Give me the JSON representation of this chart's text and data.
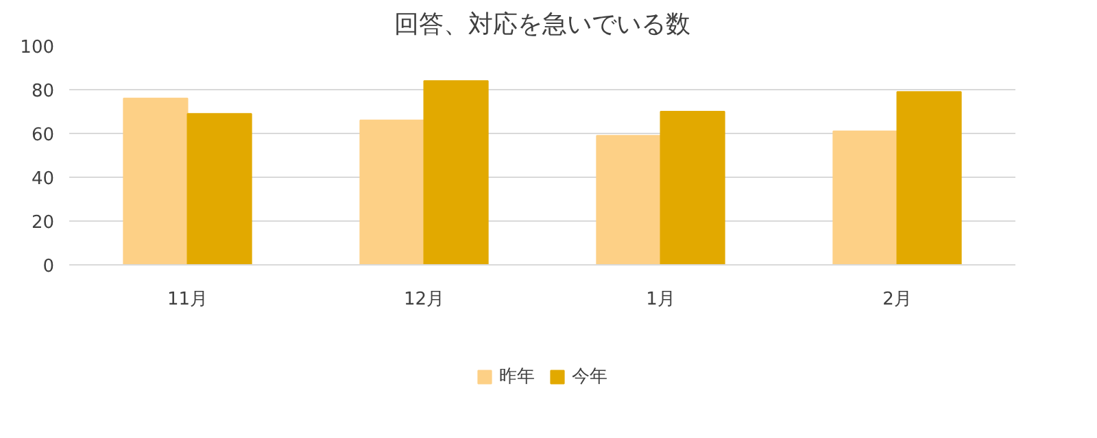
{
  "chart_data": {
    "type": "bar",
    "title": "回答、対応を急いでいる数",
    "categories": [
      "11月",
      "12月",
      "1月",
      "2月"
    ],
    "series": [
      {
        "name": "昨年",
        "color": "#fdd086",
        "values": [
          76,
          66,
          59,
          61
        ]
      },
      {
        "name": "今年",
        "color": "#e2a900",
        "values": [
          69,
          84,
          70,
          79
        ]
      }
    ],
    "ylim": [
      0,
      100
    ],
    "yticks": [
      0,
      20,
      40,
      60,
      80,
      100
    ],
    "grid": "y",
    "legend": "bottom"
  }
}
